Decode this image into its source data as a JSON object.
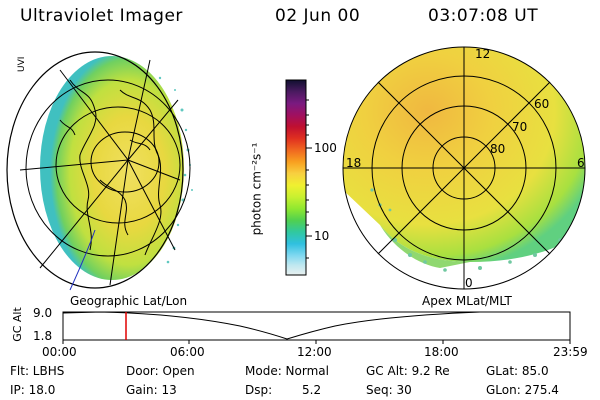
{
  "header": {
    "title": "Ultraviolet Imager",
    "date": "02 Jun 00",
    "time": "03:07:08 UT"
  },
  "left_panel": {
    "caption": "Geographic Lat/Lon",
    "corner_label": "UVI"
  },
  "right_panel": {
    "caption": "Apex MLat/MLT",
    "lat_labels": [
      "60",
      "70",
      "80"
    ],
    "mlt_labels": {
      "top": "12",
      "left": "18",
      "right": "6",
      "bottom": "0"
    }
  },
  "colorbar": {
    "unit_label": "photon cm⁻²s⁻¹",
    "ticks": [
      "100",
      "10"
    ],
    "colors": [
      "#101030",
      "#4a1a60",
      "#7a1a80",
      "#a01060",
      "#c01030",
      "#e03020",
      "#f06820",
      "#f8a020",
      "#f8d040",
      "#f0f030",
      "#c8f030",
      "#90e830",
      "#50d050",
      "#30c8a0",
      "#30c0e0",
      "#80d8f0",
      "#c0e8f0",
      "#e8f0f0"
    ]
  },
  "timeline": {
    "y_label": "GC Alt",
    "y_ticks": [
      "9.0",
      "1.8"
    ],
    "x_ticks": [
      "00:00",
      "06:00",
      "12:00",
      "18:00",
      "23:59"
    ],
    "marker_time": "03:07",
    "marker_color": "#e00000"
  },
  "info": {
    "filter": "Flt: LBHS",
    "ip": "IP: 18.0",
    "door": "Door: Open",
    "gain": "Gain: 13",
    "mode": "Mode: Normal",
    "dsp": "Dsp:",
    "dsp_value": "5.2",
    "gc_alt": "GC Alt: 9.2 Re",
    "seq": "Seq: 30",
    "glat": "GLat:  85.0",
    "glon": "GLon: 275.4"
  }
}
